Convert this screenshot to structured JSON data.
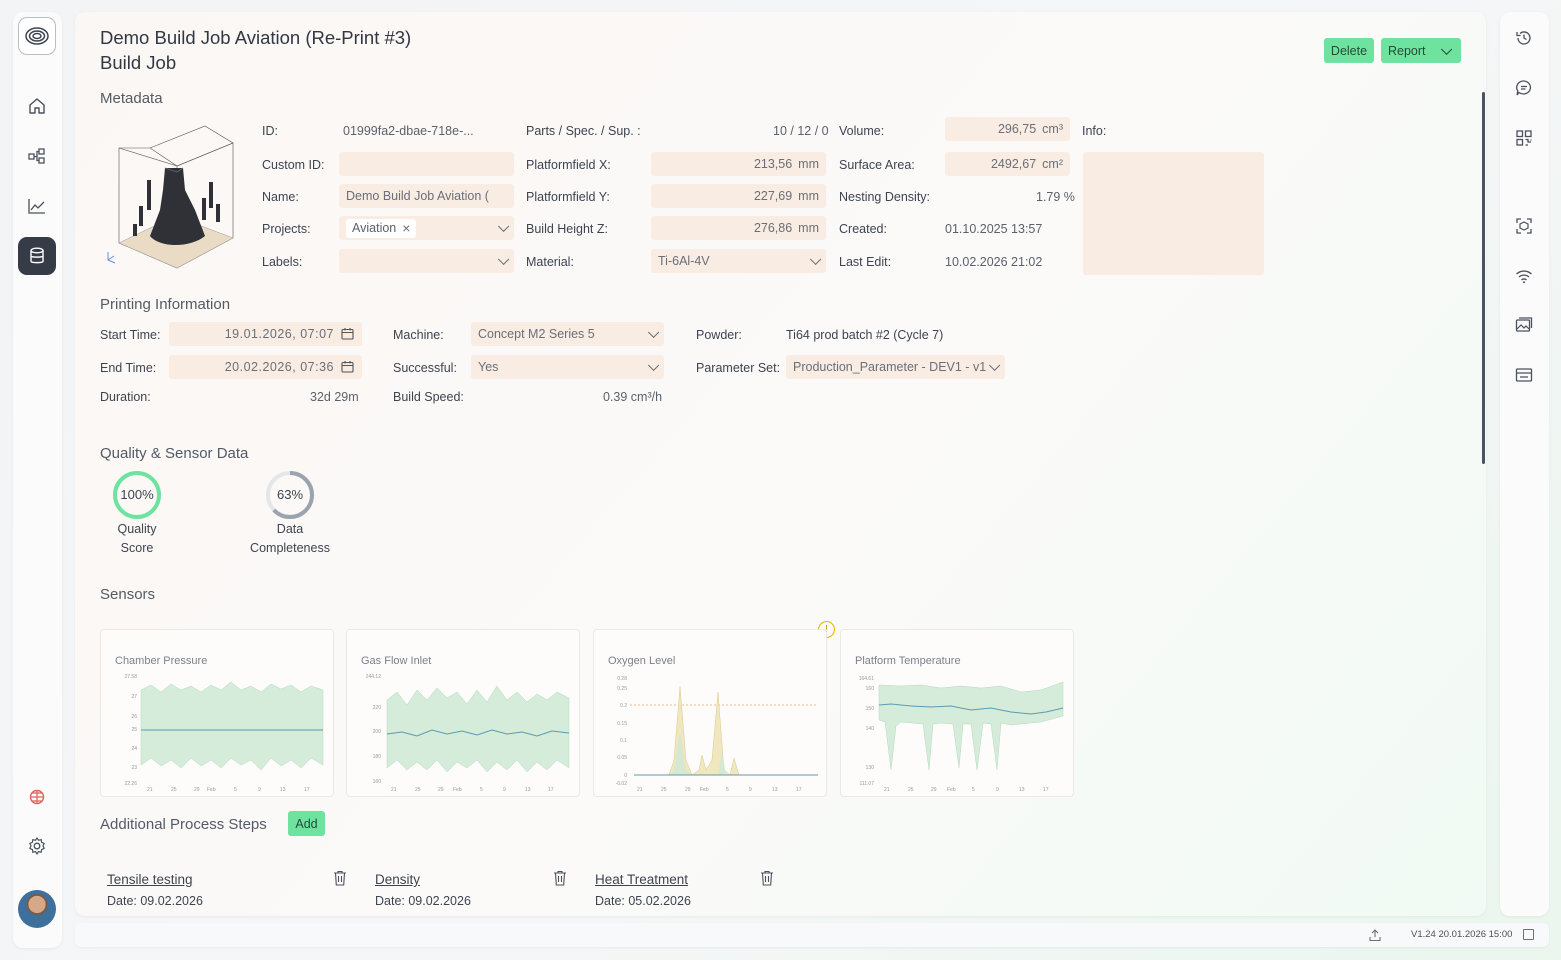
{
  "header": {
    "title": "Demo Build Job Aviation (Re-Print #3)",
    "subtitle": "Build Job",
    "delete_label": "Delete",
    "report_label": "Report"
  },
  "metadata": {
    "section_title": "Metadata",
    "id_label": "ID:",
    "id_value": "01999fa2-dbae-718e-...",
    "custom_id_label": "Custom ID:",
    "custom_id_value": "",
    "name_label": "Name:",
    "name_value": "Demo Build Job Aviation (",
    "projects_label": "Projects:",
    "project_chip": "Aviation",
    "labels_label": "Labels:",
    "labels_value": "",
    "parts_label": "Parts / Spec. / Sup. :",
    "parts_value": "10 / 12 / 0",
    "pfx_label": "Platformfield X:",
    "pfx_value": "213,56",
    "pfy_label": "Platformfield Y:",
    "pfy_value": "227,69",
    "bhz_label": "Build Height Z:",
    "bhz_value": "276,86",
    "mm_unit": "mm",
    "material_label": "Material:",
    "material_value": "Ti-6Al-4V",
    "volume_label": "Volume:",
    "volume_value": "296,75",
    "volume_unit": "cm³",
    "surface_label": "Surface Area:",
    "surface_value": "2492,67",
    "surface_unit": "cm²",
    "nesting_label": "Nesting Density:",
    "nesting_value": "1.79 %",
    "created_label": "Created:",
    "created_value": "01.10.2025 13:57",
    "lastedit_label": "Last Edit:",
    "lastedit_value": "10.02.2026 21:02",
    "info_label": "Info:",
    "info_value": ""
  },
  "printing": {
    "section_title": "Printing Information",
    "start_label": "Start Time:",
    "start_value": "19.01.2026, 07:07",
    "end_label": "End Time:",
    "end_value": "20.02.2026, 07:36",
    "duration_label": "Duration:",
    "duration_value": "32d 29m",
    "machine_label": "Machine:",
    "machine_value": "Concept M2 Series 5",
    "successful_label": "Successful:",
    "successful_value": "Yes",
    "speed_label": "Build Speed:",
    "speed_value": "0.39 cm³/h",
    "powder_label": "Powder:",
    "powder_value": "Ti64 prod batch #2 (Cycle 7)",
    "param_label": "Parameter Set:",
    "param_value": "Production_Parameter - DEV1 - v1"
  },
  "quality": {
    "section_title": "Quality & Sensor Data",
    "quality_score": 100,
    "quality_score_text": "100%",
    "quality_caption_1": "Quality",
    "quality_caption_2": "Score",
    "completeness": 63,
    "completeness_text": "63%",
    "completeness_caption_1": "Data",
    "completeness_caption_2": "Completeness",
    "colors": {
      "quality": "#6ee3a0",
      "completeness": "#9aa3ae"
    }
  },
  "sensors": {
    "section_title": "Sensors",
    "warning_glyph": "!",
    "cards": [
      {
        "title": "Chamber Pressure",
        "y_ticks": [
          "27.58",
          "27",
          "26",
          "25",
          "24",
          "23",
          "22.26"
        ],
        "x_ticks": [
          "21",
          "25",
          "29",
          "Feb",
          "5",
          "9",
          "13",
          "17"
        ]
      },
      {
        "title": "Gas Flow Inlet",
        "y_ticks": [
          "244.12",
          "220",
          "200",
          "180",
          "160"
        ],
        "x_ticks": [
          "21",
          "25",
          "29",
          "Feb",
          "5",
          "9",
          "13",
          "17"
        ]
      },
      {
        "title": "Oxygen Level",
        "y_ticks": [
          "0.28",
          "0.25",
          "0.2",
          "0.15",
          "0.1",
          "0.05",
          "0",
          "-0.02"
        ],
        "x_ticks": [
          "21",
          "25",
          "29",
          "Feb",
          "5",
          "9",
          "13",
          "17"
        ]
      },
      {
        "title": "Platform Temperature",
        "y_ticks": [
          "164.61",
          "160",
          "150",
          "140",
          "130",
          "111.07"
        ],
        "x_ticks": [
          "21",
          "25",
          "29",
          "Feb",
          "5",
          "9",
          "13",
          "17"
        ]
      }
    ]
  },
  "steps": {
    "section_title": "Additional Process Steps",
    "add_label": "Add",
    "items": [
      {
        "name": "Tensile testing",
        "date": "Date: 09.02.2026"
      },
      {
        "name": "Density",
        "date": "Date: 09.02.2026"
      },
      {
        "name": "Heat Treatment",
        "date": "Date: 05.02.2026"
      }
    ]
  },
  "footer": {
    "version": "V1.24 20.01.2026 15:00"
  },
  "icons": {
    "left_nav": [
      "logo-icon",
      "home-icon",
      "workflow-icon",
      "chart-icon",
      "database-icon",
      "bug-icon",
      "settings-icon",
      "avatar"
    ],
    "right_nav": [
      "history-icon",
      "comment-icon",
      "qr-code-icon",
      "scan-icon",
      "wifi-icon",
      "image-gallery-icon",
      "inbox-icon"
    ]
  }
}
